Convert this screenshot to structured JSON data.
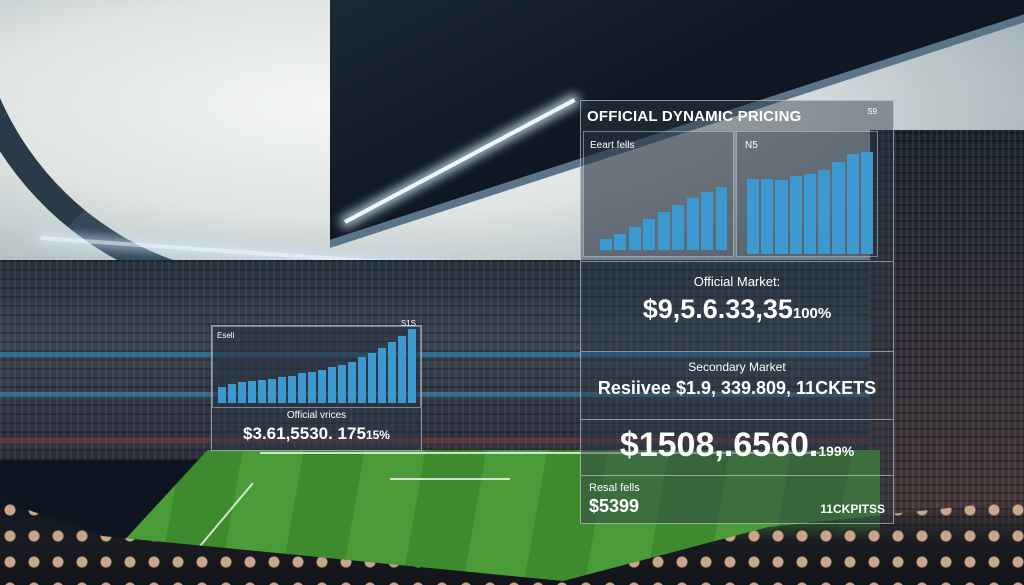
{
  "main_panel": {
    "title": "OFFICIAL DYNAMIC PRICING",
    "corner_tag": "S9",
    "left_chart": {
      "label": "Eeart fells",
      "bars": [
        0.12,
        0.18,
        0.26,
        0.34,
        0.42,
        0.5,
        0.58,
        0.64,
        0.7
      ]
    },
    "right_chart": {
      "label": "N5",
      "bars": [
        0.74,
        0.74,
        0.73,
        0.76,
        0.78,
        0.82,
        0.9,
        0.98,
        1.0
      ]
    },
    "official_market": {
      "label": "Official Market:",
      "value": "$9,5.6.33,35",
      "suffix": "100%"
    },
    "secondary_market": {
      "label": "Secondary Market",
      "value": "Resiivee $1.9, 339.809, 11CKETS"
    },
    "price_block": {
      "value": "$1508,.6560.",
      "suffix": "199%"
    },
    "resale": {
      "label": "Resal fells",
      "value": "$5399",
      "tickets": "11CKPITSS"
    }
  },
  "small_panel": {
    "corner_left": "Esell",
    "corner_right": "S1S",
    "bars": [
      0.22,
      0.26,
      0.28,
      0.3,
      0.31,
      0.33,
      0.35,
      0.37,
      0.4,
      0.42,
      0.45,
      0.48,
      0.52,
      0.56,
      0.62,
      0.68,
      0.75,
      0.82,
      0.9,
      1.0
    ],
    "caption": "Official vrices",
    "value": "$3.61,5530. 175",
    "suffix": "15%"
  },
  "colors": {
    "bar": "#3d9ad1",
    "panel_border": "#dce6f0",
    "text": "#ffffff"
  }
}
